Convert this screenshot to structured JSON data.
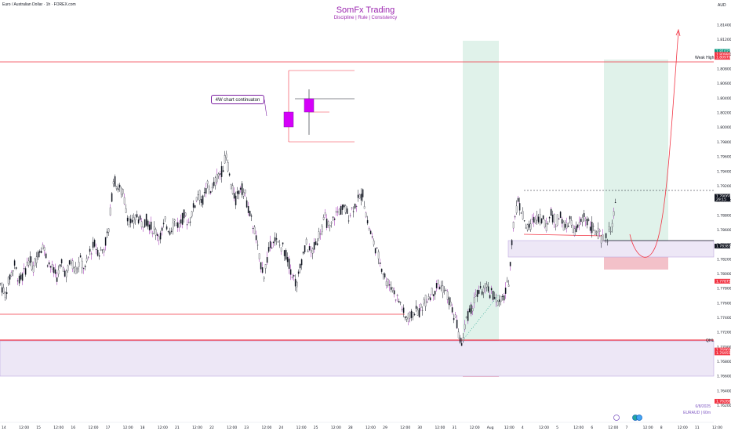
{
  "header": {
    "symbol": "Euro / Australian Dollar · 1h · FOREX.com",
    "title": "SomFx Trading",
    "subtitle": "Discipline | Rule | Consistency",
    "currency": "AUD"
  },
  "annotations": {
    "callout": "4W chart continuaton",
    "weak_high": "Weak High",
    "qhl": "QHL",
    "date": "6/8/2025",
    "watermark": "EURAUD | 60m"
  },
  "colors": {
    "candle": "#131722",
    "wick_highlight": "#9c27b0",
    "accent": "#9c27b0",
    "resistance": "#f23645",
    "demand_zone": "#ede7f6",
    "target_zone": "#e0f2ea",
    "stop_zone": "#f3c1c9"
  },
  "chart_data": {
    "type": "candlestick",
    "y_range": [
      1.76,
      1.814
    ],
    "y_ticks": [
      "1.81400",
      "1.81000",
      "1.80600",
      "1.80200",
      "1.79800",
      "1.79400",
      "1.79000",
      "1.78600",
      "1.78200",
      "1.77800",
      "1.77400",
      "1.77000",
      "1.76600",
      "1.76200"
    ],
    "y_tick_values": [
      1.814,
      1.812,
      1.81,
      1.808,
      1.806,
      1.804,
      1.802,
      1.8,
      1.798,
      1.796,
      1.794,
      1.792,
      1.79,
      1.788,
      1.786,
      1.784,
      1.782,
      1.78,
      1.778,
      1.776,
      1.774,
      1.772,
      1.77,
      1.768,
      1.766,
      1.764,
      1.762
    ],
    "y_tick_labels": [
      "1.81400",
      "1.81200",
      "1.81000",
      "1.80800",
      "1.80600",
      "1.80400",
      "1.80200",
      "1.80000",
      "1.79800",
      "1.79600",
      "1.79400",
      "1.79200",
      "1.79000",
      "1.78800",
      "1.78600",
      "1.78400",
      "1.78200",
      "1.78000",
      "1.77800",
      "1.77600",
      "1.77400",
      "1.77200",
      "1.77000",
      "1.76800",
      "1.76600",
      "1.76400",
      "1.76200"
    ],
    "x_ticks": [
      "14",
      "12:00",
      "15",
      "12:00",
      "16",
      "12:00",
      "17",
      "12:00",
      "18",
      "12:00",
      "21",
      "12:00",
      "22",
      "12:00",
      "23",
      "12:00",
      "24",
      "12:00",
      "25",
      "12:00",
      "28",
      "12:00",
      "29",
      "12:00",
      "30",
      "12:00",
      "31",
      "12:00",
      "Aug",
      "12:00",
      "4",
      "12:00",
      "5",
      "12:00",
      "6",
      "12:00",
      "7",
      "12:00",
      "8",
      "12:00",
      "11",
      "12:00"
    ],
    "price_tags": [
      {
        "label": "1.81025",
        "color": "#089981"
      },
      {
        "label": "1.80986",
        "color": "#f23645"
      },
      {
        "label": "1.80979",
        "color": "#f23645"
      },
      {
        "label": "1.79060",
        "color": "#131722"
      },
      {
        "label": "29:15",
        "color": "#131722"
      },
      {
        "label": "1.78383",
        "color": "#131722"
      },
      {
        "label": "1.77875",
        "color": "#f23645"
      },
      {
        "label": "1.76960",
        "color": "#f23645"
      },
      {
        "label": "1.76955",
        "color": "#f23645"
      },
      {
        "label": "1.76266",
        "color": "#f23645"
      }
    ],
    "levels": {
      "weak_high": 1.8098,
      "qhl": 1.7696,
      "last_price": 1.7906,
      "low_line": 1.7714,
      "demand_top": 1.7834,
      "demand_bottom": 1.7813,
      "weak_demand_top": 1.7696,
      "weak_demand_bottom": 1.7627
    },
    "price_path": [
      [
        0,
        1.7786
      ],
      [
        6,
        1.7772
      ],
      [
        12,
        1.7796
      ],
      [
        18,
        1.7812
      ],
      [
        24,
        1.779
      ],
      [
        30,
        1.78
      ],
      [
        36,
        1.782
      ],
      [
        42,
        1.7808
      ],
      [
        48,
        1.783
      ],
      [
        54,
        1.784
      ],
      [
        60,
        1.7818
      ],
      [
        66,
        1.7806
      ],
      [
        72,
        1.7796
      ],
      [
        78,
        1.7812
      ],
      [
        84,
        1.78
      ],
      [
        90,
        1.7818
      ],
      [
        96,
        1.7806
      ],
      [
        102,
        1.7818
      ],
      [
        108,
        1.7806
      ],
      [
        114,
        1.783
      ],
      [
        120,
        1.784
      ],
      [
        126,
        1.7828
      ],
      [
        132,
        1.7836
      ],
      [
        138,
        1.786
      ],
      [
        144,
        1.793
      ],
      [
        150,
        1.7918
      ],
      [
        156,
        1.791
      ],
      [
        162,
        1.788
      ],
      [
        168,
        1.7866
      ],
      [
        174,
        1.788
      ],
      [
        180,
        1.7868
      ],
      [
        186,
        1.7874
      ],
      [
        192,
        1.7864
      ],
      [
        198,
        1.7858
      ],
      [
        204,
        1.7852
      ],
      [
        210,
        1.787
      ],
      [
        216,
        1.786
      ],
      [
        222,
        1.7872
      ],
      [
        228,
        1.7866
      ],
      [
        234,
        1.788
      ],
      [
        240,
        1.787
      ],
      [
        246,
        1.789
      ],
      [
        252,
        1.791
      ],
      [
        258,
        1.79
      ],
      [
        264,
        1.792
      ],
      [
        270,
        1.7914
      ],
      [
        276,
        1.7932
      ],
      [
        282,
        1.794
      ],
      [
        288,
        1.7962
      ],
      [
        294,
        1.792
      ],
      [
        300,
        1.79
      ],
      [
        306,
        1.792
      ],
      [
        312,
        1.7908
      ],
      [
        318,
        1.788
      ],
      [
        324,
        1.786
      ],
      [
        330,
        1.782
      ],
      [
        336,
        1.78
      ],
      [
        342,
        1.783
      ],
      [
        348,
        1.785
      ],
      [
        354,
        1.784
      ],
      [
        360,
        1.7836
      ],
      [
        366,
        1.782
      ],
      [
        372,
        1.78
      ],
      [
        378,
        1.7784
      ],
      [
        384,
        1.782
      ],
      [
        390,
        1.784
      ],
      [
        396,
        1.7828
      ],
      [
        402,
        1.784
      ],
      [
        408,
        1.786
      ],
      [
        414,
        1.7876
      ],
      [
        420,
        1.786
      ],
      [
        426,
        1.788
      ],
      [
        432,
        1.7886
      ],
      [
        438,
        1.789
      ],
      [
        444,
        1.788
      ],
      [
        450,
        1.7892
      ],
      [
        456,
        1.79
      ],
      [
        462,
        1.791
      ],
      [
        468,
        1.787
      ],
      [
        474,
        1.7848
      ],
      [
        480,
        1.783
      ],
      [
        486,
        1.781
      ],
      [
        492,
        1.779
      ],
      [
        498,
        1.7784
      ],
      [
        504,
        1.777
      ],
      [
        510,
        1.776
      ],
      [
        516,
        1.774
      ],
      [
        522,
        1.774
      ],
      [
        528,
        1.775
      ],
      [
        534,
        1.7748
      ],
      [
        540,
        1.776
      ],
      [
        546,
        1.777
      ],
      [
        552,
        1.7776
      ],
      [
        558,
        1.7786
      ],
      [
        564,
        1.778
      ],
      [
        570,
        1.777
      ],
      [
        576,
        1.775
      ],
      [
        582,
        1.773
      ],
      [
        588,
        1.77
      ],
      [
        594,
        1.774
      ],
      [
        600,
        1.775
      ],
      [
        606,
        1.777
      ],
      [
        612,
        1.7776
      ],
      [
        618,
        1.778
      ],
      [
        624,
        1.7774
      ],
      [
        630,
        1.777
      ],
      [
        636,
        1.776
      ],
      [
        642,
        1.7768
      ],
      [
        648,
        1.779
      ],
      [
        654,
        1.787
      ],
      [
        660,
        1.79
      ],
      [
        666,
        1.788
      ],
      [
        672,
        1.786
      ],
      [
        678,
        1.787
      ],
      [
        684,
        1.788
      ],
      [
        690,
        1.7876
      ],
      [
        696,
        1.7866
      ],
      [
        702,
        1.7882
      ],
      [
        708,
        1.787
      ],
      [
        714,
        1.788
      ],
      [
        720,
        1.786
      ],
      [
        726,
        1.7874
      ],
      [
        732,
        1.7856
      ],
      [
        738,
        1.7866
      ],
      [
        744,
        1.788
      ],
      [
        750,
        1.787
      ],
      [
        756,
        1.786
      ],
      [
        762,
        1.7856
      ],
      [
        768,
        1.7846
      ],
      [
        774,
        1.785
      ],
      [
        780,
        1.787
      ],
      [
        786,
        1.7906
      ]
    ]
  }
}
